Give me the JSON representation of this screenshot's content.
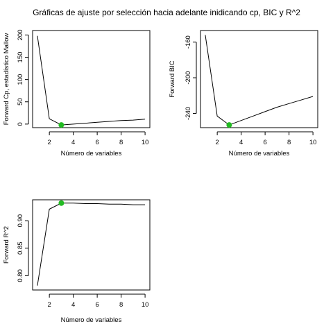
{
  "page_title": "Gráficas de ajuste por selección hacia adelante inidicando cp, BIC y R^2",
  "chart_data": [
    {
      "type": "line",
      "panel": "top-left",
      "x": [
        1,
        2,
        3,
        4,
        5,
        6,
        7,
        8,
        9,
        10
      ],
      "y": [
        198,
        12,
        -2,
        0,
        2,
        4,
        6,
        8,
        9,
        11
      ],
      "highlight": {
        "x": 3,
        "y": -2,
        "color": "#22bb22"
      },
      "xlabel": "Número de variables",
      "ylabel": "Forward Cp, estadístico Mallow",
      "xlim": [
        0.6,
        10.4
      ],
      "ylim": [
        -8,
        210
      ],
      "xticks": [
        2,
        4,
        6,
        8,
        10
      ],
      "yticks": [
        0,
        50,
        100,
        150,
        200
      ]
    },
    {
      "type": "line",
      "panel": "top-right",
      "x": [
        1,
        2,
        3,
        4,
        5,
        6,
        7,
        8,
        9,
        10
      ],
      "y": [
        -152,
        -243,
        -253,
        -248,
        -243,
        -238,
        -233,
        -229,
        -225,
        -221
      ],
      "highlight": {
        "x": 3,
        "y": -253,
        "color": "#22bb22"
      },
      "xlabel": "Número de variables",
      "ylabel": "Forward BIC",
      "xlim": [
        0.6,
        10.4
      ],
      "ylim": [
        -256,
        -147
      ],
      "xticks": [
        2,
        4,
        6,
        8,
        10
      ],
      "yticks": [
        -240,
        -200,
        -160
      ]
    },
    {
      "type": "line",
      "panel": "bottom-left",
      "x": [
        1,
        2,
        3,
        4,
        5,
        6,
        7,
        8,
        9,
        10
      ],
      "y": [
        0.782,
        0.921,
        0.932,
        0.932,
        0.931,
        0.931,
        0.93,
        0.93,
        0.929,
        0.929
      ],
      "highlight": {
        "x": 3,
        "y": 0.932,
        "color": "#22bb22"
      },
      "xlabel": "Número de variables",
      "ylabel": "Forward R^2",
      "xlim": [
        0.6,
        10.4
      ],
      "ylim": [
        0.774,
        0.938
      ],
      "xticks": [
        2,
        4,
        6,
        8,
        10
      ],
      "yticks": [
        0.8,
        0.85,
        0.9
      ],
      "ytick_labels": [
        "0.80",
        "0.85",
        "0.90"
      ]
    }
  ]
}
